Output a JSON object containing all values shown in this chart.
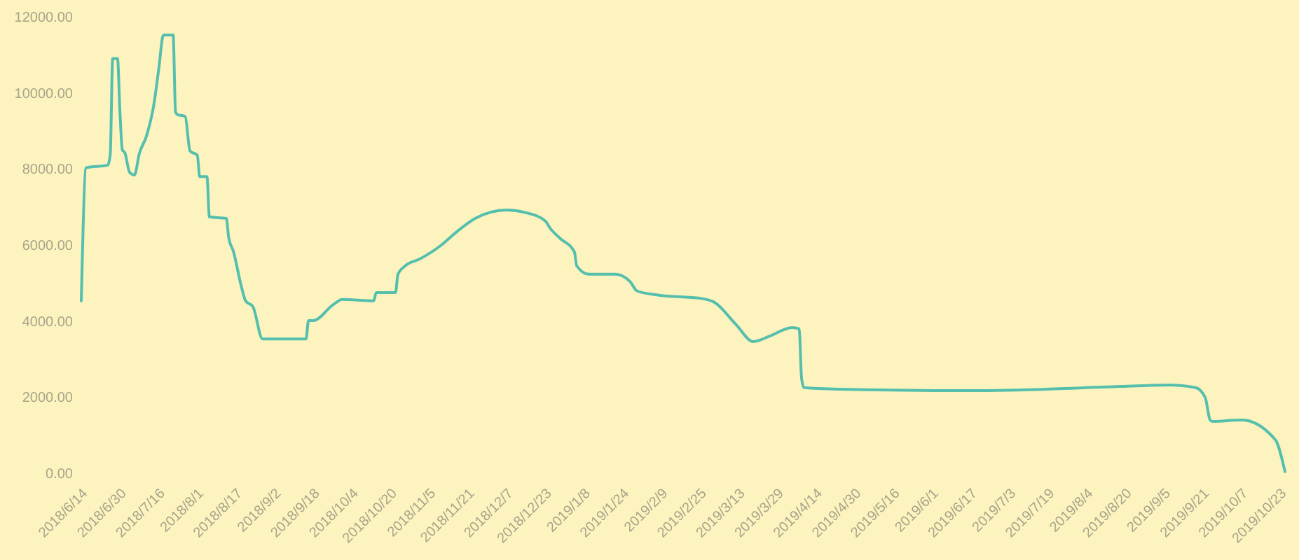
{
  "chart_data": {
    "type": "line",
    "x": [
      "2018-06-14",
      "2018-06-16",
      "2018-06-25",
      "2018-06-26",
      "2018-06-27",
      "2018-06-29",
      "2018-06-30",
      "2018-07-01",
      "2018-07-02",
      "2018-07-04",
      "2018-07-06",
      "2018-07-08",
      "2018-07-11",
      "2018-07-14",
      "2018-07-16",
      "2018-07-18",
      "2018-07-22",
      "2018-07-23",
      "2018-07-24",
      "2018-07-26",
      "2018-07-27",
      "2018-07-29",
      "2018-08-01",
      "2018-08-02",
      "2018-08-05",
      "2018-08-06",
      "2018-08-13",
      "2018-08-14",
      "2018-08-16",
      "2018-08-19",
      "2018-08-21",
      "2018-08-24",
      "2018-08-28",
      "2018-09-15",
      "2018-09-16",
      "2018-09-18",
      "2018-09-26",
      "2018-09-30",
      "2018-10-13",
      "2018-10-14",
      "2018-10-22",
      "2018-10-23",
      "2018-10-26",
      "2018-11-01",
      "2018-11-10",
      "2018-11-16",
      "2018-11-24",
      "2018-12-07",
      "2018-12-15",
      "2018-12-23",
      "2018-12-25",
      "2018-12-29",
      "2019-01-04",
      "2019-01-05",
      "2019-01-10",
      "2019-01-21",
      "2019-01-27",
      "2019-01-30",
      "2019-02-08",
      "2019-02-25",
      "2019-03-03",
      "2019-03-12",
      "2019-03-19",
      "2019-03-26",
      "2019-04-04",
      "2019-04-07",
      "2019-04-08",
      "2019-04-09",
      "2019-04-24",
      "2019-06-21",
      "2019-08-18",
      "2019-09-07",
      "2019-09-18",
      "2019-09-22",
      "2019-09-24",
      "2019-09-25",
      "2019-10-07",
      "2019-10-21",
      "2019-10-25"
    ],
    "series": [
      {
        "color": "#55bfae",
        "values": [
          4530,
          8030,
          8100,
          8400,
          10900,
          10900,
          9500,
          8500,
          8430,
          7910,
          7840,
          8400,
          8870,
          9680,
          10600,
          11520,
          11520,
          9500,
          9420,
          9400,
          9380,
          8470,
          8360,
          7800,
          7800,
          6740,
          6700,
          6190,
          5820,
          4970,
          4530,
          4380,
          3530,
          3530,
          4010,
          4010,
          4420,
          4570,
          4530,
          4750,
          4750,
          5230,
          5450,
          5630,
          6000,
          6330,
          6700,
          6920,
          6850,
          6630,
          6440,
          6180,
          5820,
          5450,
          5230,
          5230,
          5040,
          4790,
          4680,
          4600,
          4490,
          3900,
          3460,
          3610,
          3830,
          3800,
          2500,
          2250,
          2210,
          2170,
          2280,
          2320,
          2250,
          1990,
          1400,
          1360,
          1400,
          880,
          40
        ]
      }
    ],
    "xlim": [
      "2018-06-14",
      "2019-10-25"
    ],
    "xticks": [
      {
        "value": "2018-06-14",
        "label": "2018/6/14"
      },
      {
        "value": "2018-06-30",
        "label": "2018/6/30"
      },
      {
        "value": "2018-07-16",
        "label": "2018/7/16"
      },
      {
        "value": "2018-08-01",
        "label": "2018/8/1"
      },
      {
        "value": "2018-08-17",
        "label": "2018/8/17"
      },
      {
        "value": "2018-09-02",
        "label": "2018/9/2"
      },
      {
        "value": "2018-09-18",
        "label": "2018/9/18"
      },
      {
        "value": "2018-10-04",
        "label": "2018/10/4"
      },
      {
        "value": "2018-10-20",
        "label": "2018/10/20"
      },
      {
        "value": "2018-11-05",
        "label": "2018/11/5"
      },
      {
        "value": "2018-11-21",
        "label": "2018/11/21"
      },
      {
        "value": "2018-12-07",
        "label": "2018/12/7"
      },
      {
        "value": "2018-12-23",
        "label": "2018/12/23"
      },
      {
        "value": "2019-01-08",
        "label": "2019/1/8"
      },
      {
        "value": "2019-01-24",
        "label": "2019/1/24"
      },
      {
        "value": "2019-02-09",
        "label": "2019/2/9"
      },
      {
        "value": "2019-02-25",
        "label": "2019/2/25"
      },
      {
        "value": "2019-03-13",
        "label": "2019/3/13"
      },
      {
        "value": "2019-03-29",
        "label": "2019/3/29"
      },
      {
        "value": "2019-04-14",
        "label": "2019/4/14"
      },
      {
        "value": "2019-04-30",
        "label": "2019/4/30"
      },
      {
        "value": "2019-05-16",
        "label": "2019/5/16"
      },
      {
        "value": "2019-06-01",
        "label": "2019/6/1"
      },
      {
        "value": "2019-06-17",
        "label": "2019/6/17"
      },
      {
        "value": "2019-07-03",
        "label": "2019/7/3"
      },
      {
        "value": "2019-07-19",
        "label": "2019/7/19"
      },
      {
        "value": "2019-08-04",
        "label": "2019/8/4"
      },
      {
        "value": "2019-08-20",
        "label": "2019/8/20"
      },
      {
        "value": "2019-09-05",
        "label": "2019/9/5"
      },
      {
        "value": "2019-09-21",
        "label": "2019/9/21"
      },
      {
        "value": "2019-10-07",
        "label": "2019/10/7"
      },
      {
        "value": "2019-10-23",
        "label": "2019/10/23"
      }
    ],
    "ylim": [
      0,
      12000
    ],
    "yticks": [
      {
        "value": 0,
        "label": "0.00"
      },
      {
        "value": 2000,
        "label": "2000.00"
      },
      {
        "value": 4000,
        "label": "4000.00"
      },
      {
        "value": 6000,
        "label": "6000.00"
      },
      {
        "value": 8000,
        "label": "8000.00"
      },
      {
        "value": 10000,
        "label": "10000.00"
      },
      {
        "value": 12000,
        "label": "12000.00"
      }
    ],
    "line_style": "solid"
  }
}
